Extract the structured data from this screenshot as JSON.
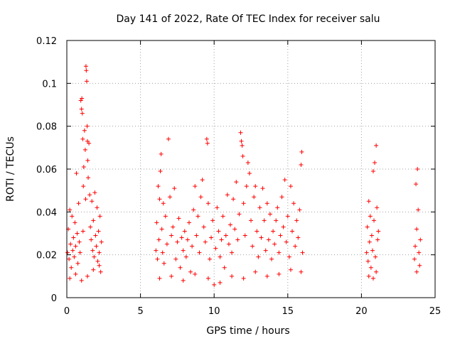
{
  "chart_data": {
    "type": "scatter",
    "title": "Day 141 of 2022, Rate Of TEC Index for receiver salu",
    "xlabel": "GPS time / hours",
    "ylabel": "ROTI / TECUs",
    "xlim": [
      0,
      25
    ],
    "ylim": [
      0,
      0.12
    ],
    "xticks": [
      0,
      5,
      10,
      15,
      20,
      25
    ],
    "xtick_labels": [
      "0",
      "5",
      "10",
      "15",
      "20",
      "25"
    ],
    "yticks": [
      0,
      0.02,
      0.04,
      0.06,
      0.08,
      0.1,
      0.12
    ],
    "ytick_labels": [
      "0",
      "0.02",
      "0.04",
      "0.06",
      "0.08",
      "0.1",
      "0.12"
    ],
    "grid": true,
    "marker": "+",
    "color": "#ff0000",
    "series": [
      {
        "name": "ROTI",
        "points": [
          [
            0.05,
            0.021
          ],
          [
            0.1,
            0.032
          ],
          [
            0.15,
            0.018
          ],
          [
            0.2,
            0.041
          ],
          [
            0.25,
            0.025
          ],
          [
            0.3,
            0.014
          ],
          [
            0.35,
            0.038
          ],
          [
            0.4,
            0.022
          ],
          [
            0.45,
            0.028
          ],
          [
            0.5,
            0.019
          ],
          [
            0.55,
            0.035
          ],
          [
            0.6,
            0.024
          ],
          [
            0.65,
            0.058
          ],
          [
            0.7,
            0.03
          ],
          [
            0.75,
            0.016
          ],
          [
            0.8,
            0.044
          ],
          [
            0.85,
            0.026
          ],
          [
            0.9,
            0.021
          ],
          [
            0.95,
            0.092
          ],
          [
            1.0,
            0.088
          ],
          [
            1.02,
            0.093
          ],
          [
            1.05,
            0.086
          ],
          [
            1.08,
            0.074
          ],
          [
            1.1,
            0.031
          ],
          [
            1.12,
            0.052
          ],
          [
            1.15,
            0.061
          ],
          [
            1.2,
            0.078
          ],
          [
            1.25,
            0.069
          ],
          [
            1.28,
            0.046
          ],
          [
            1.3,
            0.108
          ],
          [
            1.32,
            0.106
          ],
          [
            1.35,
            0.101
          ],
          [
            1.38,
            0.08
          ],
          [
            1.4,
            0.073
          ],
          [
            1.42,
            0.064
          ],
          [
            1.45,
            0.056
          ],
          [
            1.5,
            0.072
          ],
          [
            1.55,
            0.048
          ],
          [
            1.6,
            0.033
          ],
          [
            1.65,
            0.027
          ],
          [
            1.7,
            0.045
          ],
          [
            1.75,
            0.022
          ],
          [
            1.8,
            0.036
          ],
          [
            1.85,
            0.019
          ],
          [
            1.9,
            0.049
          ],
          [
            1.95,
            0.029
          ],
          [
            2.0,
            0.024
          ],
          [
            2.05,
            0.042
          ],
          [
            2.1,
            0.017
          ],
          [
            2.15,
            0.031
          ],
          [
            2.2,
            0.021
          ],
          [
            2.25,
            0.038
          ],
          [
            2.3,
            0.012
          ],
          [
            2.35,
            0.026
          ],
          [
            0.2,
            0.009
          ],
          [
            0.6,
            0.011
          ],
          [
            1.0,
            0.008
          ],
          [
            1.4,
            0.01
          ],
          [
            1.8,
            0.013
          ],
          [
            2.2,
            0.015
          ],
          [
            6.05,
            0.022
          ],
          [
            6.1,
            0.035
          ],
          [
            6.15,
            0.018
          ],
          [
            6.2,
            0.052
          ],
          [
            6.25,
            0.027
          ],
          [
            6.3,
            0.046
          ],
          [
            6.35,
            0.059
          ],
          [
            6.4,
            0.067
          ],
          [
            6.45,
            0.032
          ],
          [
            6.5,
            0.021
          ],
          [
            6.55,
            0.044
          ],
          [
            6.6,
            0.016
          ],
          [
            6.7,
            0.038
          ],
          [
            6.8,
            0.025
          ],
          [
            6.9,
            0.074
          ],
          [
            7.0,
            0.047
          ],
          [
            7.1,
            0.029
          ],
          [
            7.2,
            0.033
          ],
          [
            7.3,
            0.051
          ],
          [
            7.4,
            0.018
          ],
          [
            7.5,
            0.026
          ],
          [
            7.6,
            0.037
          ],
          [
            7.7,
            0.014
          ],
          [
            7.8,
            0.028
          ],
          [
            7.9,
            0.022
          ],
          [
            8.0,
            0.031
          ],
          [
            8.1,
            0.019
          ],
          [
            8.2,
            0.027
          ],
          [
            8.3,
            0.035
          ],
          [
            8.4,
            0.012
          ],
          [
            8.5,
            0.024
          ],
          [
            8.6,
            0.041
          ],
          [
            8.7,
            0.052
          ],
          [
            8.8,
            0.029
          ],
          [
            8.9,
            0.038
          ],
          [
            9.0,
            0.021
          ],
          [
            9.1,
            0.047
          ],
          [
            9.2,
            0.055
          ],
          [
            9.3,
            0.033
          ],
          [
            9.4,
            0.026
          ],
          [
            9.5,
            0.074
          ],
          [
            9.55,
            0.072
          ],
          [
            9.6,
            0.044
          ],
          [
            9.7,
            0.018
          ],
          [
            9.8,
            0.028
          ],
          [
            9.9,
            0.036
          ],
          [
            10.0,
            0.006
          ],
          [
            10.1,
            0.023
          ],
          [
            10.2,
            0.042
          ],
          [
            10.3,
            0.031
          ],
          [
            10.4,
            0.019
          ],
          [
            10.5,
            0.027
          ],
          [
            10.6,
            0.038
          ],
          [
            10.7,
            0.014
          ],
          [
            10.8,
            0.029
          ],
          [
            10.9,
            0.048
          ],
          [
            11.0,
            0.025
          ],
          [
            11.1,
            0.034
          ],
          [
            11.2,
            0.021
          ],
          [
            11.3,
            0.046
          ],
          [
            11.4,
            0.032
          ],
          [
            11.5,
            0.054
          ],
          [
            11.6,
            0.027
          ],
          [
            11.7,
            0.039
          ],
          [
            11.8,
            0.077
          ],
          [
            11.85,
            0.073
          ],
          [
            11.9,
            0.071
          ],
          [
            11.95,
            0.066
          ],
          [
            12.0,
            0.044
          ],
          [
            12.1,
            0.029
          ],
          [
            12.2,
            0.052
          ],
          [
            12.3,
            0.063
          ],
          [
            12.4,
            0.058
          ],
          [
            12.5,
            0.036
          ],
          [
            12.6,
            0.024
          ],
          [
            12.7,
            0.047
          ],
          [
            12.8,
            0.052
          ],
          [
            12.9,
            0.031
          ],
          [
            13.0,
            0.019
          ],
          [
            13.1,
            0.042
          ],
          [
            13.2,
            0.028
          ],
          [
            13.3,
            0.051
          ],
          [
            13.4,
            0.036
          ],
          [
            13.5,
            0.022
          ],
          [
            13.6,
            0.044
          ],
          [
            13.7,
            0.027
          ],
          [
            13.8,
            0.039
          ],
          [
            13.9,
            0.018
          ],
          [
            14.0,
            0.031
          ],
          [
            14.1,
            0.025
          ],
          [
            14.2,
            0.036
          ],
          [
            14.3,
            0.042
          ],
          [
            14.4,
            0.021
          ],
          [
            14.5,
            0.029
          ],
          [
            14.6,
            0.047
          ],
          [
            14.7,
            0.033
          ],
          [
            14.8,
            0.055
          ],
          [
            14.9,
            0.026
          ],
          [
            15.0,
            0.038
          ],
          [
            15.1,
            0.019
          ],
          [
            15.2,
            0.052
          ],
          [
            15.3,
            0.031
          ],
          [
            15.4,
            0.044
          ],
          [
            15.5,
            0.024
          ],
          [
            15.6,
            0.036
          ],
          [
            15.7,
            0.028
          ],
          [
            15.8,
            0.041
          ],
          [
            15.9,
            0.062
          ],
          [
            15.95,
            0.068
          ],
          [
            16.0,
            0.021
          ],
          [
            6.3,
            0.009
          ],
          [
            7.1,
            0.01
          ],
          [
            7.9,
            0.008
          ],
          [
            8.7,
            0.011
          ],
          [
            9.6,
            0.009
          ],
          [
            10.4,
            0.007
          ],
          [
            11.2,
            0.01
          ],
          [
            12.0,
            0.009
          ],
          [
            12.8,
            0.012
          ],
          [
            13.6,
            0.01
          ],
          [
            14.4,
            0.011
          ],
          [
            15.2,
            0.013
          ],
          [
            15.9,
            0.012
          ],
          [
            20.35,
            0.021
          ],
          [
            20.4,
            0.033
          ],
          [
            20.45,
            0.017
          ],
          [
            20.5,
            0.045
          ],
          [
            20.55,
            0.026
          ],
          [
            20.6,
            0.038
          ],
          [
            20.65,
            0.014
          ],
          [
            20.7,
            0.029
          ],
          [
            20.75,
            0.022
          ],
          [
            20.8,
            0.059
          ],
          [
            20.85,
            0.036
          ],
          [
            20.9,
            0.063
          ],
          [
            20.95,
            0.019
          ],
          [
            21.0,
            0.071
          ],
          [
            21.05,
            0.042
          ],
          [
            21.1,
            0.027
          ],
          [
            21.15,
            0.031
          ],
          [
            20.5,
            0.01
          ],
          [
            20.8,
            0.009
          ],
          [
            21.0,
            0.012
          ],
          [
            23.6,
            0.018
          ],
          [
            23.65,
            0.024
          ],
          [
            23.7,
            0.053
          ],
          [
            23.75,
            0.032
          ],
          [
            23.8,
            0.06
          ],
          [
            23.85,
            0.041
          ],
          [
            23.9,
            0.021
          ],
          [
            23.95,
            0.015
          ],
          [
            24.0,
            0.027
          ],
          [
            23.75,
            0.012
          ]
        ]
      }
    ]
  }
}
